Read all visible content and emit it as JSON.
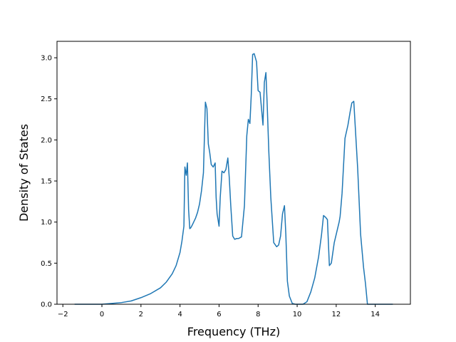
{
  "chart_data": {
    "type": "line",
    "title": "",
    "xlabel": "Frequency (THz)",
    "ylabel": "Density of States",
    "xlim": [
      -2.3,
      15.8
    ],
    "ylim": [
      0.0,
      3.2
    ],
    "xticks": [
      -2,
      0,
      2,
      4,
      6,
      8,
      10,
      12,
      14
    ],
    "xtick_labels": [
      "−2",
      "0",
      "2",
      "4",
      "6",
      "8",
      "10",
      "12",
      "14"
    ],
    "yticks": [
      0.0,
      0.5,
      1.0,
      1.5,
      2.0,
      2.5,
      3.0
    ],
    "ytick_labels": [
      "0.0",
      "0.5",
      "1.0",
      "1.5",
      "2.0",
      "2.5",
      "3.0"
    ],
    "grid": false,
    "legend": "none",
    "colors": {
      "line": "#1f77b4"
    },
    "series": [
      {
        "x": [
          -1.4,
          -1.0,
          0.0,
          0.5,
          1.0,
          1.5,
          2.0,
          2.5,
          3.0,
          3.3,
          3.6,
          3.8,
          4.0,
          4.1,
          4.2,
          4.25,
          4.32,
          4.38,
          4.44,
          4.5,
          4.55,
          4.62,
          4.7,
          4.8,
          4.9,
          5.0,
          5.1,
          5.2,
          5.3,
          5.38,
          5.45,
          5.52,
          5.6,
          5.7,
          5.8,
          5.85,
          5.9,
          6.0,
          6.06,
          6.15,
          6.25,
          6.35,
          6.45,
          6.52,
          6.6,
          6.7,
          6.8,
          6.9,
          7.0,
          7.15,
          7.3,
          7.42,
          7.5,
          7.58,
          7.65,
          7.72,
          7.8,
          7.92,
          8.0,
          8.1,
          8.25,
          8.32,
          8.4,
          8.47,
          8.55,
          8.65,
          8.8,
          8.95,
          9.05,
          9.15,
          9.25,
          9.35,
          9.42,
          9.5,
          9.6,
          9.75,
          9.9,
          10.3,
          10.5,
          10.7,
          10.9,
          11.0,
          11.1,
          11.25,
          11.35,
          11.45,
          11.55,
          11.65,
          11.75,
          11.9,
          12.05,
          12.15,
          12.2,
          12.3,
          12.45,
          12.6,
          12.72,
          12.8,
          12.9,
          13.1,
          13.25,
          13.4,
          13.5,
          13.6,
          14.0,
          14.9
        ],
        "y": [
          0.0,
          0.0,
          0.0,
          0.01,
          0.02,
          0.04,
          0.08,
          0.13,
          0.2,
          0.27,
          0.37,
          0.47,
          0.63,
          0.77,
          0.95,
          1.67,
          1.57,
          1.72,
          1.15,
          0.92,
          0.93,
          0.96,
          1.0,
          1.05,
          1.12,
          1.22,
          1.38,
          1.6,
          2.46,
          2.38,
          1.95,
          1.85,
          1.7,
          1.67,
          1.72,
          1.3,
          1.1,
          0.95,
          1.3,
          1.62,
          1.6,
          1.64,
          1.78,
          1.55,
          1.2,
          0.83,
          0.79,
          0.8,
          0.8,
          0.82,
          1.2,
          2.05,
          2.25,
          2.2,
          2.55,
          3.04,
          3.05,
          2.95,
          2.6,
          2.58,
          2.18,
          2.7,
          2.82,
          2.4,
          1.85,
          1.3,
          0.75,
          0.7,
          0.72,
          0.83,
          1.1,
          1.2,
          0.85,
          0.28,
          0.1,
          0.01,
          0.0,
          0.0,
          0.03,
          0.15,
          0.32,
          0.45,
          0.58,
          0.85,
          1.08,
          1.06,
          1.03,
          0.47,
          0.5,
          0.75,
          0.9,
          1.0,
          1.07,
          1.35,
          2.02,
          2.18,
          2.35,
          2.45,
          2.47,
          1.65,
          0.85,
          0.45,
          0.25,
          0.0,
          0.0,
          0.0
        ]
      }
    ]
  }
}
